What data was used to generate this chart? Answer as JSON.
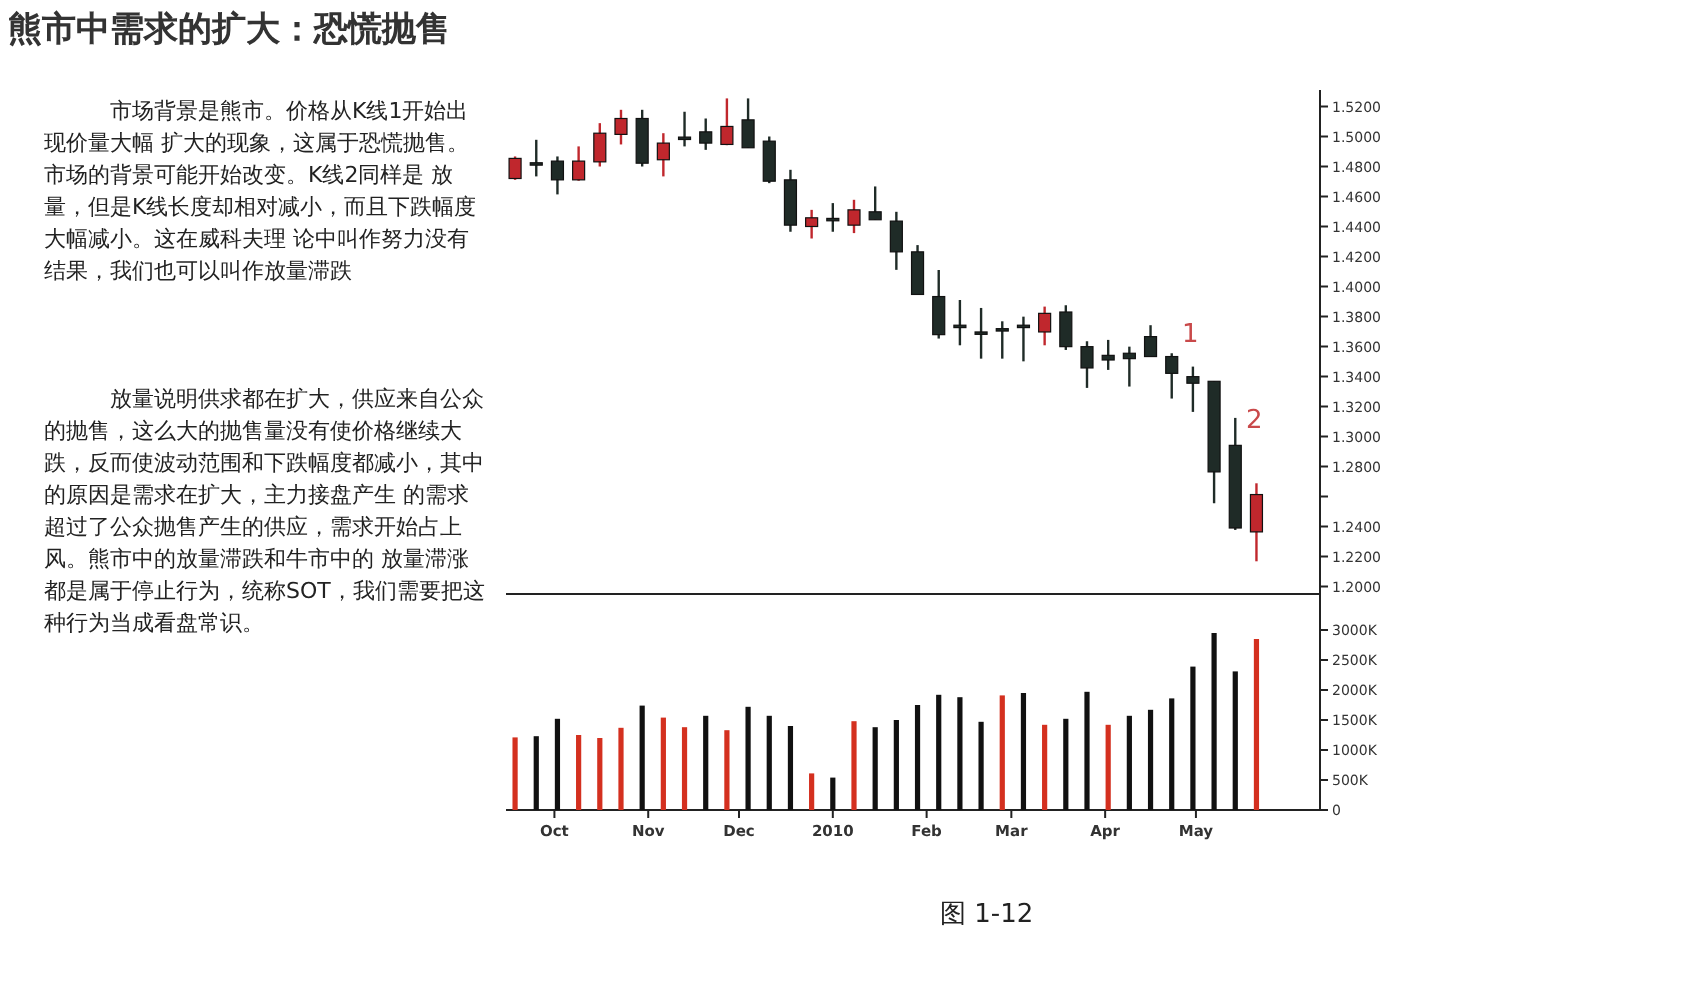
{
  "chart_data": [
    {
      "type": "candlestick",
      "title": "熊市中需求的扩大：恐慌抛售",
      "annotations": [
        "市场背景是熊市。价格从K线1开始出现价量大幅 扩大的现象，这属于恐慌抛售。市场的背景可能开始改变。K线2同样是 放量，但是K线长度却相对减小，而且下跌幅度大幅减小。这在威科夫理 论中叫作努力没有结果，我们也可以叫作放量滞跌",
        "放量说明供求都在扩大，供应来自公众的抛售，这么大的抛售量没有使价格继续大跌，反而使波动范围和下跌幅度都减小，其中的原因是需求在扩大，主力接盘产生 的需求超过了公众抛售产生的供应，需求开始占上风。熊市中的放量滞跌和牛市中的 放量滞涨都是属于停止行为，统称SOT，我们需要把这种行为当成看盘常识。",
        "1",
        "2"
      ],
      "x": [
        "2009-09-18",
        "2009-09-25",
        "2009-10-02",
        "2009-10-09",
        "2009-10-16",
        "2009-10-23",
        "2009-10-30",
        "2009-11-06",
        "2009-11-13",
        "2009-11-20",
        "2009-11-27",
        "2009-12-04",
        "2009-12-11",
        "2009-12-18",
        "2009-12-25",
        "2010-01-01",
        "2010-01-08",
        "2010-01-15",
        "2010-01-22",
        "2010-01-29",
        "2010-02-05",
        "2010-02-12",
        "2010-02-19",
        "2010-02-26",
        "2010-03-05",
        "2010-03-12",
        "2010-03-19",
        "2010-03-26",
        "2010-04-02",
        "2010-04-09",
        "2010-04-16",
        "2010-04-23",
        "2010-04-30",
        "2010-05-07",
        "2010-05-14",
        "2010-05-21"
      ],
      "ohlc": [
        [
          1.472,
          1.4867,
          1.4711,
          1.4854
        ],
        [
          1.4825,
          1.4978,
          1.4734,
          1.482
        ],
        [
          1.4836,
          1.4867,
          1.4614,
          1.4711
        ],
        [
          1.4711,
          1.4934,
          1.4705,
          1.4836
        ],
        [
          1.4831,
          1.5089,
          1.48,
          1.5022
        ],
        [
          1.5014,
          1.5178,
          1.4947,
          1.512
        ],
        [
          1.512,
          1.5178,
          1.48,
          1.4822
        ],
        [
          1.4845,
          1.5022,
          1.4734,
          1.4956
        ],
        [
          1.4996,
          1.5165,
          1.4934,
          1.4991
        ],
        [
          1.5031,
          1.512,
          1.4911,
          1.4956
        ],
        [
          1.4947,
          1.5254,
          1.4942,
          1.5067
        ],
        [
          1.5111,
          1.5254,
          1.4925,
          1.4925
        ],
        [
          1.4969,
          1.5,
          1.4689,
          1.4702
        ],
        [
          1.4711,
          1.4778,
          1.4365,
          1.4409
        ],
        [
          1.44,
          1.4511,
          1.432,
          1.4458
        ],
        [
          1.4454,
          1.4556,
          1.4365,
          1.4449
        ],
        [
          1.4409,
          1.4578,
          1.4356,
          1.4511
        ],
        [
          1.4498,
          1.4667,
          1.4445,
          1.4445
        ],
        [
          1.4436,
          1.4498,
          1.4111,
          1.4231
        ],
        [
          1.4231,
          1.4276,
          1.3947,
          1.3947
        ],
        [
          1.3933,
          1.411,
          1.3653,
          1.3679
        ],
        [
          1.3742,
          1.391,
          1.3608,
          1.3738
        ],
        [
          1.3697,
          1.3857,
          1.3519,
          1.3693
        ],
        [
          1.3719,
          1.3768,
          1.3519,
          1.3715
        ],
        [
          1.3742,
          1.3799,
          1.3501,
          1.3737
        ],
        [
          1.3697,
          1.3866,
          1.3608,
          1.3821
        ],
        [
          1.383,
          1.3875,
          1.3577,
          1.3599
        ],
        [
          1.3599,
          1.3635,
          1.3324,
          1.3457
        ],
        [
          1.3541,
          1.3644,
          1.3444,
          1.351
        ],
        [
          1.3555,
          1.3599,
          1.3333,
          1.3519
        ],
        [
          1.3666,
          1.3742,
          1.3533,
          1.3533
        ],
        [
          1.3533,
          1.3555,
          1.3253,
          1.3421
        ],
        [
          1.3399,
          1.3466,
          1.3164,
          1.3355
        ],
        [
          1.3368,
          1.3368,
          1.2555,
          1.2764
        ],
        [
          1.2941,
          1.3124,
          1.2377,
          1.239
        ],
        [
          1.2364,
          1.2688,
          1.2168,
          1.2613
        ]
      ],
      "colors": [
        "#c0272d",
        "#1f2b27",
        "#1f2b27",
        "#c0272d",
        "#c0272d",
        "#c0272d",
        "#1f2b27",
        "#c0272d",
        "#1f2b27",
        "#1f2b27",
        "#c0272d",
        "#1f2b27",
        "#1f2b27",
        "#1f2b27",
        "#c0272d",
        "#1f2b27",
        "#c0272d",
        "#1f2b27",
        "#1f2b27",
        "#1f2b27",
        "#1f2b27",
        "#1f2b27",
        "#1f2b27",
        "#1f2b27",
        "#1f2b27",
        "#c0272d",
        "#1f2b27",
        "#1f2b27",
        "#1f2b27",
        "#1f2b27",
        "#1f2b27",
        "#1f2b27",
        "#1f2b27",
        "#1f2b27",
        "#1f2b27",
        "#c0272d"
      ],
      "xlim": [
        "2009-09-15",
        "2010-06-11"
      ],
      "ylim": [
        1.195,
        1.531
      ],
      "yticks": [
        {
          "value": 1.52,
          "label": "1.5200"
        },
        {
          "value": 1.5,
          "label": "1.5000"
        },
        {
          "value": 1.48,
          "label": "1.4800"
        },
        {
          "value": 1.46,
          "label": "1.4600"
        },
        {
          "value": 1.44,
          "label": "1.4400"
        },
        {
          "value": 1.42,
          "label": "1.4200"
        },
        {
          "value": 1.4,
          "label": "1.4000"
        },
        {
          "value": 1.38,
          "label": "1.3800"
        },
        {
          "value": 1.36,
          "label": "1.3600"
        },
        {
          "value": 1.34,
          "label": "1.3400"
        },
        {
          "value": 1.32,
          "label": "1.3200"
        },
        {
          "value": 1.3,
          "label": "1.3000"
        },
        {
          "value": 1.28,
          "label": "1.2800"
        },
        {
          "value": 1.26,
          "label": null
        },
        {
          "value": 1.24,
          "label": "1.2400"
        },
        {
          "value": 1.22,
          "label": "1.2200"
        },
        {
          "value": 1.2,
          "label": "1.2000"
        }
      ],
      "tick_labels": "y"
    },
    {
      "type": "bar",
      "annotations": [
        "图 1-12"
      ],
      "x": [
        "2009-09-18",
        "2009-09-25",
        "2009-10-02",
        "2009-10-09",
        "2009-10-16",
        "2009-10-23",
        "2009-10-30",
        "2009-11-06",
        "2009-11-13",
        "2009-11-20",
        "2009-11-27",
        "2009-12-04",
        "2009-12-11",
        "2009-12-18",
        "2009-12-25",
        "2010-01-01",
        "2010-01-08",
        "2010-01-15",
        "2010-01-22",
        "2010-01-29",
        "2010-02-05",
        "2010-02-12",
        "2010-02-19",
        "2010-02-26",
        "2010-03-05",
        "2010-03-12",
        "2010-03-19",
        "2010-03-26",
        "2010-04-02",
        "2010-04-09",
        "2010-04-16",
        "2010-04-23",
        "2010-04-30",
        "2010-05-07",
        "2010-05-14",
        "2010-05-21"
      ],
      "values": [
        1210,
        1230,
        1520,
        1250,
        1200,
        1370,
        1740,
        1540,
        1380,
        1570,
        1330,
        1720,
        1570,
        1400,
        610,
        540,
        1480,
        1380,
        1500,
        1750,
        1920,
        1880,
        1470,
        1910,
        1950,
        1420,
        1520,
        1970,
        1420,
        1570,
        1670,
        1860,
        2390,
        2950,
        2310,
        2850
      ],
      "colors": [
        "#d4301f",
        "#111111",
        "#111111",
        "#d4301f",
        "#d4301f",
        "#d4301f",
        "#111111",
        "#d4301f",
        "#d4301f",
        "#111111",
        "#d4301f",
        "#111111",
        "#111111",
        "#111111",
        "#d4301f",
        "#111111",
        "#d4301f",
        "#111111",
        "#111111",
        "#111111",
        "#111111",
        "#111111",
        "#111111",
        "#d4301f",
        "#111111",
        "#d4301f",
        "#111111",
        "#111111",
        "#d4301f",
        "#111111",
        "#111111",
        "#111111",
        "#111111",
        "#111111",
        "#111111",
        "#d4301f"
      ],
      "xlim": [
        "2009-09-15",
        "2010-06-11"
      ],
      "xticks": [
        {
          "value": "2009-10-01",
          "label": "Oct"
        },
        {
          "value": "2009-11-01",
          "label": "Nov"
        },
        {
          "value": "2009-12-01",
          "label": "Dec"
        },
        {
          "value": "2010-01-01",
          "label": "2010"
        },
        {
          "value": "2010-02-01",
          "label": "Feb"
        },
        {
          "value": "2010-03-01",
          "label": "Mar"
        },
        {
          "value": "2010-04-01",
          "label": "Apr"
        },
        {
          "value": "2010-05-01",
          "label": "May"
        }
      ],
      "ylim": [
        0,
        3600
      ],
      "yticks": [
        {
          "value": 0,
          "label": "0"
        },
        {
          "value": 500,
          "label": "500K"
        },
        {
          "value": 1000,
          "label": "1000K"
        },
        {
          "value": 1500,
          "label": "1500K"
        },
        {
          "value": 2000,
          "label": "2000K"
        },
        {
          "value": 2500,
          "label": "2500K"
        },
        {
          "value": 3000,
          "label": "3000K"
        }
      ]
    }
  ]
}
